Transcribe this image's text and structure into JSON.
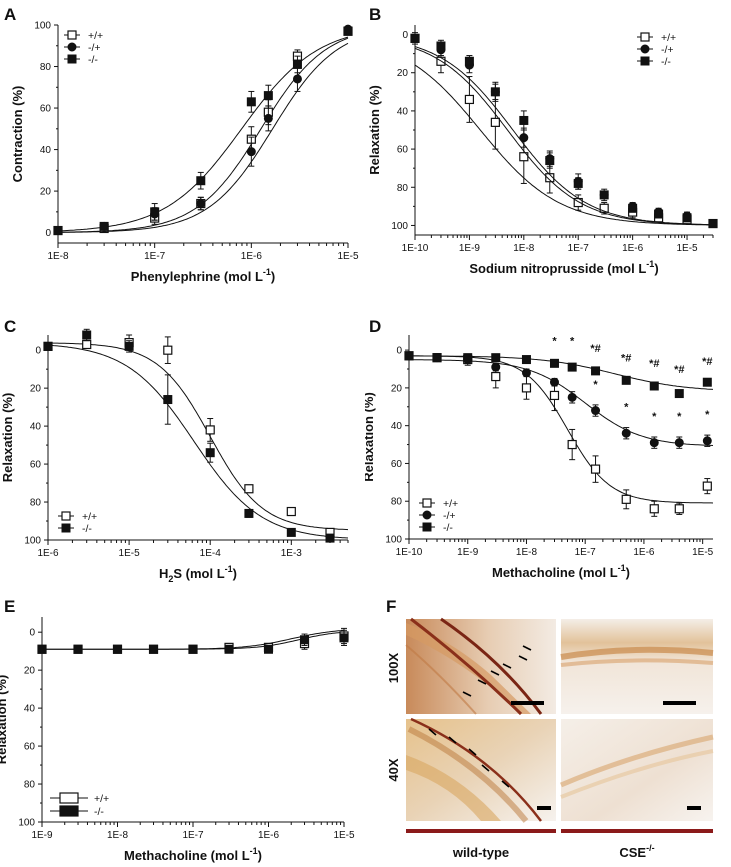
{
  "chart_data": [
    {
      "panel": "A",
      "type": "line",
      "xlabel": "Phenylephrine (mol L",
      "xlabel_sup": "-1",
      "xlabel_end": ")",
      "ylabel": "Contraction (%)",
      "xlog": true,
      "xlim": [
        1e-08,
        1e-05
      ],
      "ylim": [
        -5,
        100
      ],
      "yreverse": false,
      "xticks": [
        "1E-8",
        "1E-7",
        "1E-6",
        "1E-5"
      ],
      "yticks": [
        "0",
        "20",
        "40",
        "60",
        "80",
        "100"
      ],
      "legend_position": "top-left",
      "x": [
        1e-08,
        3e-08,
        1e-07,
        3e-07,
        1e-06,
        1.5e-06,
        3e-06,
        1e-05
      ],
      "series": [
        {
          "name": "+/+",
          "marker": "open-square",
          "values": [
            1,
            2,
            7,
            14,
            45,
            58,
            85,
            97
          ],
          "err": [
            1,
            1,
            3,
            3,
            6,
            6,
            3,
            1
          ],
          "fit": {
            "bottom": 0,
            "top": 100,
            "logec50": -5.9,
            "hill": 1.3
          }
        },
        {
          "name": "-/+",
          "marker": "filled-circle",
          "values": [
            1,
            3,
            9,
            14,
            39,
            55,
            74,
            98
          ],
          "err": [
            1,
            1,
            3,
            3,
            7,
            6,
            6,
            1
          ],
          "fit": {
            "bottom": 0,
            "top": 100,
            "logec50": -5.78,
            "hill": 1.3
          }
        },
        {
          "name": "-/-",
          "marker": "filled-square",
          "values": [
            1,
            3,
            10,
            25,
            63,
            66,
            81,
            97
          ],
          "err": [
            1,
            1,
            4,
            4,
            5,
            5,
            4,
            1
          ],
          "fit": {
            "bottom": 0,
            "top": 100,
            "logec50": -6.1,
            "hill": 1.1
          }
        }
      ]
    },
    {
      "panel": "B",
      "type": "line",
      "xlabel": "Sodium nitroprusside (mol L",
      "xlabel_sup": "-1",
      "xlabel_end": ")",
      "ylabel": "Relaxation (%)",
      "xlog": true,
      "xlim": [
        1e-10,
        3e-05
      ],
      "ylim": [
        -5,
        105
      ],
      "yreverse": true,
      "xticks": [
        "1E-10",
        "1E-9",
        "1E-8",
        "1E-7",
        "1E-6",
        "1E-5"
      ],
      "yticks": [
        "0",
        "20",
        "40",
        "60",
        "80",
        "100"
      ],
      "legend_position": "top-right",
      "x": [
        1e-10,
        3e-10,
        1e-09,
        3e-09,
        1e-08,
        3e-08,
        1e-07,
        3e-07,
        1e-06,
        3e-06,
        1e-05,
        3e-05
      ],
      "series": [
        {
          "name": "+/+",
          "marker": "open-square",
          "values": [
            2,
            14,
            34,
            46,
            64,
            75,
            88,
            91,
            93,
            96,
            97,
            99
          ],
          "err": [
            3,
            6,
            12,
            14,
            14,
            8,
            4,
            3,
            3,
            2,
            2,
            2
          ],
          "fit": {
            "bottom": 0,
            "top": 100,
            "logec50": -8.8,
            "hill": 0.6
          }
        },
        {
          "name": "-/+",
          "marker": "filled-circle",
          "values": [
            2,
            8,
            16,
            30,
            54,
            65,
            77,
            84,
            90,
            93,
            95,
            99
          ],
          "err": [
            2,
            3,
            4,
            5,
            5,
            4,
            4,
            3,
            2,
            2,
            2,
            2
          ],
          "fit": {
            "bottom": 0,
            "top": 100,
            "logec50": -8.3,
            "hill": 0.65
          }
        },
        {
          "name": "-/-",
          "marker": "filled-square",
          "values": [
            2,
            6,
            14,
            30,
            45,
            66,
            78,
            84,
            91,
            94,
            96,
            99
          ],
          "err": [
            2,
            3,
            3,
            4,
            5,
            4,
            3,
            2,
            2,
            2,
            2,
            2
          ],
          "fit": {
            "bottom": 0,
            "top": 100,
            "logec50": -8.2,
            "hill": 0.65
          }
        }
      ]
    },
    {
      "panel": "C",
      "type": "line",
      "xlabel": "H",
      "xlabel_sub": "2",
      "xlabel_mid": "S (mol L",
      "xlabel_sup": "-1",
      "xlabel_end": ")",
      "ylabel": "Relaxation (%)",
      "xlog": true,
      "xlim": [
        1e-06,
        0.005
      ],
      "ylim": [
        -8,
        100
      ],
      "yreverse": true,
      "xticks": [
        "1E-6",
        "1E-5",
        "1E-4",
        "1E-3"
      ],
      "yticks": [
        "0",
        "20",
        "40",
        "60",
        "80",
        "100"
      ],
      "legend_position": "bottom-left",
      "x": [
        1e-06,
        3e-06,
        1e-05,
        3e-05,
        0.0001,
        0.0003,
        0.001,
        0.003
      ],
      "series": [
        {
          "name": "+/+",
          "marker": "open-square",
          "values": [
            -2,
            -3,
            -4,
            0,
            42,
            73,
            85,
            96
          ],
          "err": [
            1,
            2,
            4,
            7,
            6,
            2,
            2,
            1
          ],
          "fit": {
            "bottom": -4,
            "top": 95,
            "logec50": -4.0,
            "hill": 1.35
          }
        },
        {
          "name": "-/-",
          "marker": "filled-square",
          "values": [
            -2,
            -8,
            -2,
            26,
            54,
            86,
            96,
            99
          ],
          "err": [
            1,
            3,
            3,
            13,
            5,
            2,
            1,
            1
          ],
          "fit": {
            "bottom": -4,
            "top": 100,
            "logec50": -4.2,
            "hill": 1.05
          }
        }
      ]
    },
    {
      "panel": "D",
      "type": "line",
      "xlabel": "Methacholine (mol L",
      "xlabel_sup": "-1",
      "xlabel_end": ")",
      "ylabel": "Relaxation (%)",
      "xlog": true,
      "xlim": [
        1e-10,
        1.5e-05
      ],
      "ylim": [
        -8,
        100
      ],
      "yreverse": true,
      "xticks": [
        "1E-10",
        "1E-9",
        "1E-8",
        "1E-7",
        "1E-6",
        "1E-5"
      ],
      "yticks": [
        "0",
        "20",
        "40",
        "60",
        "80",
        "100"
      ],
      "legend_position": "bottom-left",
      "x": [
        1e-10,
        3e-10,
        1e-09,
        3e-09,
        1e-08,
        3e-08,
        1e-07,
        3e-07,
        1e-06,
        3e-06,
        1e-05
      ],
      "series": [
        {
          "name": "+/+",
          "marker": "open-square",
          "values": [
            3,
            4,
            5,
            14,
            20,
            24,
            50,
            63,
            79,
            84,
            84,
            72
          ],
          "err": [
            2,
            2,
            3,
            6,
            6,
            8,
            8,
            7,
            5,
            4,
            3,
            4
          ],
          "x": [
            1e-10,
            3e-10,
            1e-09,
            3e-09,
            1e-08,
            3e-08,
            6e-08,
            1.5e-07,
            5e-07,
            1.5e-06,
            4e-06,
            1.2e-05
          ],
          "fit": {
            "bottom": 3,
            "top": 81,
            "logec50": -7.3,
            "hill": 1.2
          }
        },
        {
          "name": "-/+",
          "marker": "filled-circle",
          "values": [
            3,
            4,
            5,
            9,
            12,
            17,
            25,
            32,
            44,
            49,
            49,
            48
          ],
          "err": [
            2,
            2,
            2,
            2,
            2,
            2,
            3,
            3,
            3,
            3,
            3,
            3
          ],
          "x": [
            1e-10,
            3e-10,
            1e-09,
            3e-09,
            1e-08,
            3e-08,
            6e-08,
            1.5e-07,
            5e-07,
            1.5e-06,
            4e-06,
            1.2e-05
          ],
          "fit": {
            "bottom": 5,
            "top": 51,
            "logec50": -7.0,
            "hill": 0.9
          }
        },
        {
          "name": "-/-",
          "marker": "filled-square",
          "values": [
            3,
            4,
            4,
            4,
            5,
            7,
            9,
            11,
            16,
            19,
            23,
            17
          ],
          "err": [
            1,
            1,
            1,
            1,
            1,
            1,
            1,
            1,
            1,
            1,
            1,
            1
          ],
          "x": [
            1e-10,
            3e-10,
            1e-09,
            3e-09,
            1e-08,
            3e-08,
            6e-08,
            1.5e-07,
            5e-07,
            1.5e-06,
            4e-06,
            1.2e-05
          ],
          "fit": {
            "bottom": 3,
            "top": 22,
            "logec50": -6.5,
            "hill": 0.7
          }
        }
      ],
      "annotations": [
        {
          "x": 3e-08,
          "y": -3,
          "text": "*"
        },
        {
          "x": 6e-08,
          "y": -3,
          "text": "*"
        },
        {
          "x": 1.5e-07,
          "y": 1,
          "text": "*#"
        },
        {
          "x": 5e-07,
          "y": 6,
          "text": "*#"
        },
        {
          "x": 1.5e-06,
          "y": 9,
          "text": "*#"
        },
        {
          "x": 4e-06,
          "y": 12,
          "text": "*#"
        },
        {
          "x": 1.2e-05,
          "y": 8,
          "text": "*#"
        },
        {
          "x": 6e-08,
          "y": 12,
          "text": "*"
        },
        {
          "x": 1.5e-07,
          "y": 20,
          "text": "*"
        },
        {
          "x": 5e-07,
          "y": 32,
          "text": "*"
        },
        {
          "x": 1.5e-06,
          "y": 37,
          "text": "*"
        },
        {
          "x": 4e-06,
          "y": 37,
          "text": "*"
        },
        {
          "x": 1.2e-05,
          "y": 36,
          "text": "*"
        }
      ]
    },
    {
      "panel": "E",
      "type": "line",
      "xlabel": "Methacholine (mol L",
      "xlabel_sup": "-1",
      "xlabel_end": ")",
      "ylabel": "Relaxation (%)",
      "xlog": true,
      "xlim": [
        1e-09,
        1e-05
      ],
      "ylim": [
        -8,
        100
      ],
      "yreverse": true,
      "xticks": [
        "1E-9",
        "1E-8",
        "1E-7",
        "1E-6",
        "1E-5"
      ],
      "yticks": [
        "0",
        "20",
        "40",
        "60",
        "80",
        "100"
      ],
      "legend_position": "bottom-left",
      "x": [
        1e-09,
        3e-09,
        1e-08,
        3e-08,
        1e-07,
        3e-07,
        1e-06,
        3e-06,
        1e-05
      ],
      "series": [
        {
          "name": "+/+",
          "marker": "open-square",
          "values": [
            9,
            9,
            9,
            9,
            9,
            8,
            8,
            6,
            2
          ],
          "err": [
            1,
            1,
            1,
            1,
            1,
            1,
            2,
            3,
            4
          ],
          "fit": {
            "bottom": 9,
            "top": -1,
            "logec50": -5.6,
            "hill": 1.6
          }
        },
        {
          "name": "-/-",
          "marker": "filled-square",
          "values": [
            9,
            9,
            9,
            9,
            9,
            9,
            9,
            4,
            3
          ],
          "err": [
            1,
            1,
            1,
            1,
            1,
            1,
            1,
            3,
            4
          ],
          "fit": {
            "bottom": 9,
            "top": -2,
            "logec50": -5.7,
            "hill": 1.4
          }
        }
      ]
    }
  ],
  "panel_labels": {
    "A": "A",
    "B": "B",
    "C": "C",
    "D": "D",
    "E": "E",
    "F": "F"
  },
  "histology": {
    "row_labels": [
      "100X",
      "40X"
    ],
    "column_labels": [
      "wild-type",
      "CSE"
    ],
    "column_label_sup": "-/-"
  }
}
